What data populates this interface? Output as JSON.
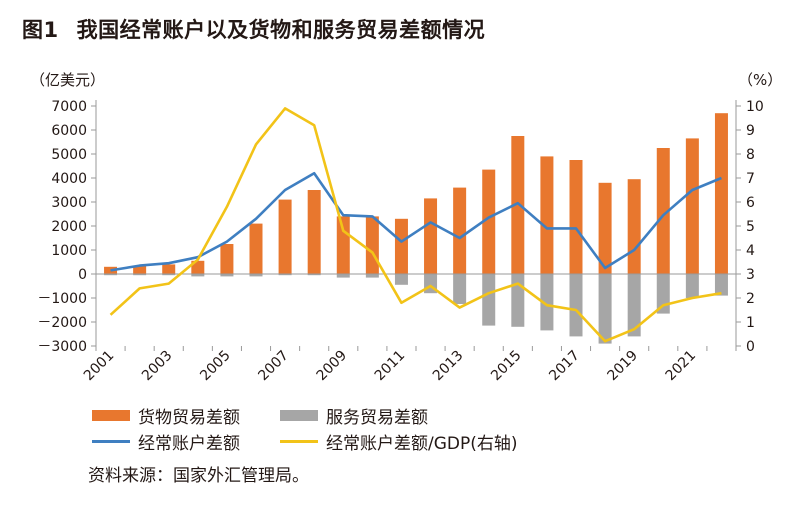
{
  "title": {
    "fig_no": "图1",
    "text": "我国经常账户以及货物和服务贸易差额情况"
  },
  "source_text": "资料来源：国家外汇管理局。",
  "colors": {
    "goods": "#e8772e",
    "services": "#a6a6a6",
    "current_account": "#3f7fc1",
    "ratio": "#f2c318"
  },
  "chart_data": {
    "type": "bar+line",
    "title": "我国经常账户以及货物和服务贸易差额情况",
    "categories": [
      "2001",
      "2002",
      "2003",
      "2004",
      "2005",
      "2006",
      "2007",
      "2008",
      "2009",
      "2010",
      "2011",
      "2012",
      "2013",
      "2014",
      "2015",
      "2016",
      "2017",
      "2018",
      "2019",
      "2020",
      "2021",
      "2022"
    ],
    "x_tick_labels": [
      "2001",
      "2003",
      "2005",
      "2007",
      "2009",
      "2011",
      "2013",
      "2015",
      "2017",
      "2019",
      "2021"
    ],
    "left_axis": {
      "unit": "（亿美元）",
      "min": -3000,
      "max": 7000,
      "step": 1000,
      "ticks": [
        "7000",
        "6000",
        "5000",
        "4000",
        "3000",
        "2000",
        "1000",
        "0",
        "－1000",
        "－2000",
        "－3000"
      ]
    },
    "right_axis": {
      "unit": "（%）",
      "min": 0,
      "max": 10,
      "step": 1,
      "ticks": [
        "10",
        "9",
        "8",
        "7",
        "6",
        "5",
        "4",
        "3",
        "2",
        "1",
        "0"
      ]
    },
    "series": [
      {
        "name": "货物贸易差额",
        "kind": "bar",
        "axis": "left",
        "values": [
          300,
          350,
          400,
          550,
          1250,
          2100,
          3100,
          3500,
          2400,
          2400,
          2300,
          3150,
          3600,
          4350,
          5750,
          4900,
          4750,
          3800,
          3950,
          5250,
          5650,
          6700
        ]
      },
      {
        "name": "服务贸易差额",
        "kind": "bar",
        "axis": "left",
        "values": [
          -50,
          -50,
          -50,
          -100,
          -100,
          -100,
          -50,
          -50,
          -150,
          -150,
          -450,
          -800,
          -1250,
          -2150,
          -2200,
          -2350,
          -2600,
          -2900,
          -2600,
          -1650,
          -1000,
          -900
        ]
      },
      {
        "name": "经常账户差额",
        "kind": "line",
        "axis": "left",
        "values": [
          150,
          350,
          450,
          700,
          1350,
          2300,
          3500,
          4200,
          2450,
          2400,
          1350,
          2150,
          1500,
          2350,
          2950,
          1900,
          1900,
          250,
          1000,
          2450,
          3500,
          4000
        ]
      },
      {
        "name": "经常账户差额/GDP(右轴)",
        "kind": "line",
        "axis": "right",
        "values": [
          1.3,
          2.4,
          2.6,
          3.6,
          5.8,
          8.4,
          9.9,
          9.2,
          4.8,
          3.9,
          1.8,
          2.5,
          1.6,
          2.2,
          2.6,
          1.7,
          1.5,
          0.2,
          0.7,
          1.7,
          2.0,
          2.2
        ]
      }
    ],
    "legend": {
      "goods": "货物贸易差额",
      "services": "服务贸易差额",
      "ca": "经常账户差额",
      "ratio": "经常账户差额/GDP(右轴)"
    }
  }
}
